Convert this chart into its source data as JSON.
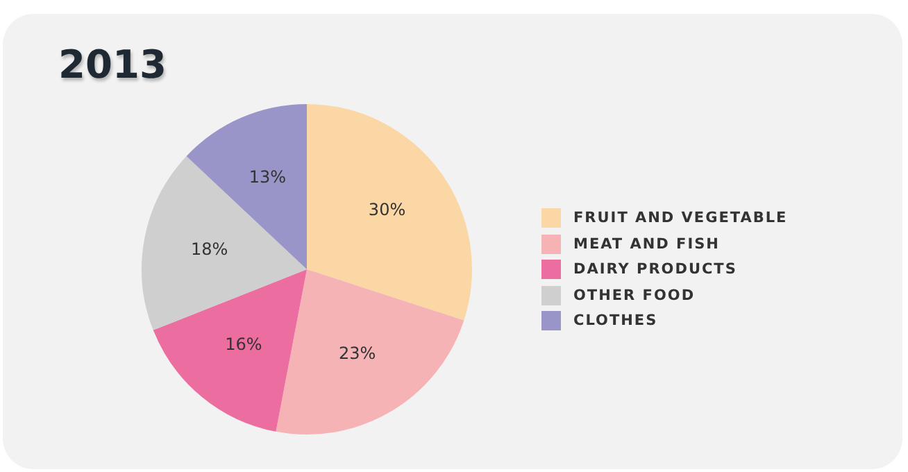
{
  "chart_data": {
    "type": "pie",
    "title": "2013",
    "categories": [
      "FRUIT AND VEGETABLE",
      "MEAT AND FISH",
      "DAIRY PRODUCTS",
      "OTHER FOOD",
      "CLOTHES"
    ],
    "values": [
      30,
      23,
      16,
      18,
      13
    ],
    "colors": [
      "#fad7a4",
      "#f5b3b5",
      "#ec6da0",
      "#cfcfcf",
      "#9a95c8"
    ],
    "value_labels": [
      "30%",
      "23%",
      "16%",
      "18%",
      "13%"
    ],
    "legend": "right"
  }
}
